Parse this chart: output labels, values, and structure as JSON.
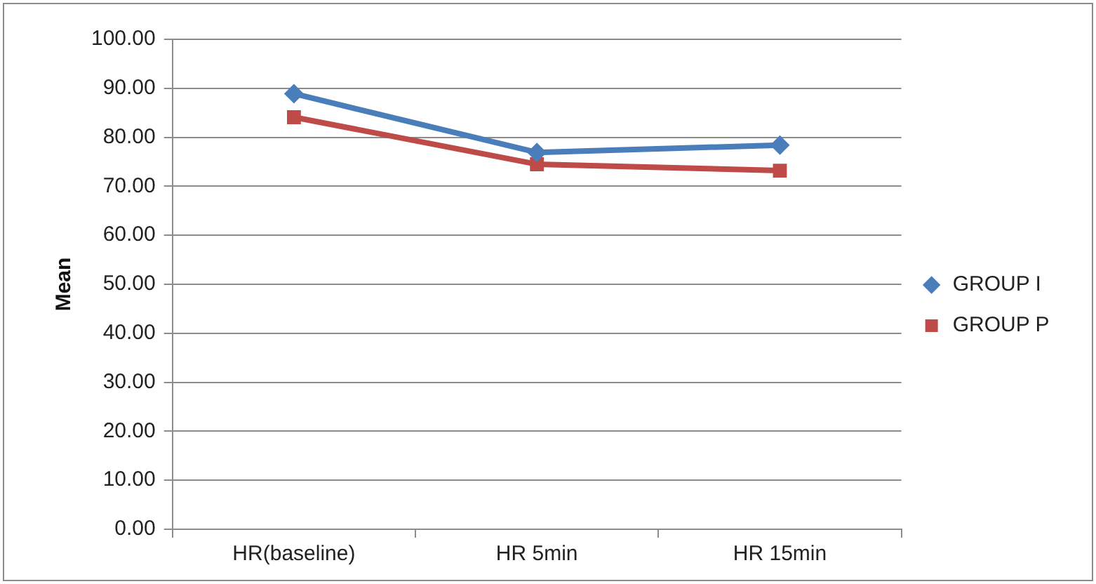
{
  "chart_data": {
    "type": "line",
    "ylabel": "Mean",
    "categories": [
      "HR(baseline)",
      "HR 5min",
      "HR 15min"
    ],
    "series": [
      {
        "name": "GROUP I",
        "color": "#4a7ebb",
        "marker": "diamond",
        "values": [
          88.9,
          76.9,
          78.4
        ]
      },
      {
        "name": "GROUP P",
        "color": "#be4b48",
        "marker": "square",
        "values": [
          84.1,
          74.5,
          73.2
        ]
      }
    ],
    "ylim": [
      0,
      100
    ],
    "yticks": [
      {
        "value": 0,
        "label": "0.00"
      },
      {
        "value": 10,
        "label": "10.00"
      },
      {
        "value": 20,
        "label": "20.00"
      },
      {
        "value": 30,
        "label": "30.00"
      },
      {
        "value": 40,
        "label": "40.00"
      },
      {
        "value": 50,
        "label": "50.00"
      },
      {
        "value": 60,
        "label": "60.00"
      },
      {
        "value": 70,
        "label": "70.00"
      },
      {
        "value": 80,
        "label": "80.00"
      },
      {
        "value": 90,
        "label": "90.00"
      },
      {
        "value": 100,
        "label": "100.00"
      }
    ],
    "grid": "y",
    "legend": "right",
    "line_style": "solid"
  }
}
